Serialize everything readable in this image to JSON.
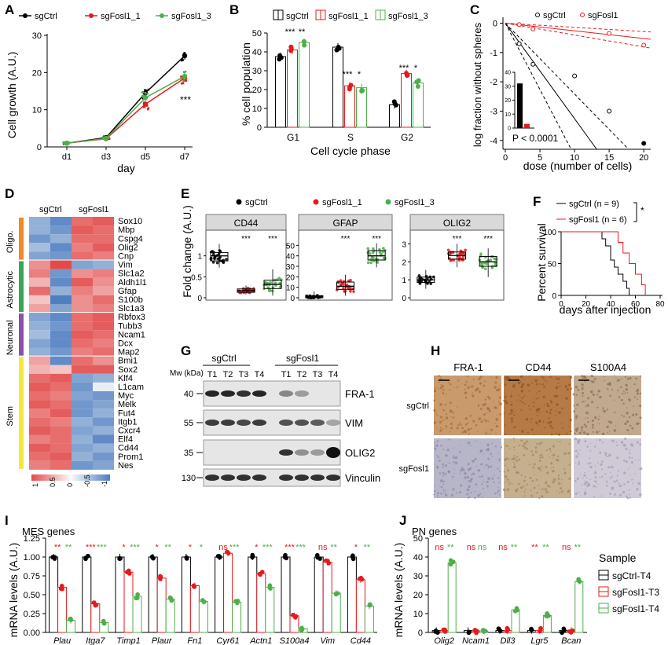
{
  "panel_letters": {
    "A": "A",
    "B": "B",
    "C": "C",
    "D": "D",
    "E": "E",
    "F": "F",
    "G": "G",
    "H": "H",
    "I": "I",
    "J": "J"
  },
  "colors": {
    "ctrl": "#000000",
    "f1": "#e41a1c",
    "f3": "#4daf4a",
    "oligo": "#f08a24",
    "astro": "#3aa655",
    "neuro": "#8e4fa8",
    "stem": "#f4e83a",
    "heat_high": "#e34a4a",
    "heat_low": "#4f7fc0"
  },
  "legend_labels": {
    "ctrl": "sgCtrl",
    "f1": "sgFosl1_1",
    "f3": "sgFosl1_3",
    "fosl1": "sgFosl1"
  },
  "chart_data": [
    {
      "panel": "A",
      "type": "line",
      "xlabel": "day",
      "ylabel": "Cell growth (A.U.)",
      "categories": [
        "d1",
        "d3",
        "d5",
        "d7"
      ],
      "ylim": [
        0,
        30
      ],
      "yticks": [
        0,
        10,
        20,
        30
      ],
      "series": [
        {
          "name": "sgCtrl",
          "values": [
            1,
            2.5,
            14.5,
            24.5
          ]
        },
        {
          "name": "sgFosl1_1",
          "values": [
            1,
            2.2,
            11.5,
            18.5
          ]
        },
        {
          "name": "sgFosl1_3",
          "values": [
            1,
            2.3,
            13.2,
            19
          ]
        }
      ],
      "annotation": "***"
    },
    {
      "panel": "B",
      "type": "bar",
      "xlabel": "Cell cycle phase",
      "ylabel": "% cell population",
      "categories": [
        "G1",
        "S",
        "G2"
      ],
      "ylim": [
        0,
        50
      ],
      "yticks": [
        0,
        10,
        20,
        30,
        40,
        50
      ],
      "series": [
        {
          "name": "sgCtrl",
          "values": [
            37.5,
            42.5,
            12
          ]
        },
        {
          "name": "sgFosl1_1",
          "values": [
            41,
            22,
            28.5
          ]
        },
        {
          "name": "sgFosl1_3",
          "values": [
            45,
            21,
            23.5
          ]
        }
      ],
      "annotations": [
        [
          "***",
          "**"
        ],
        [
          "***",
          "*"
        ],
        [
          "***",
          "*"
        ]
      ]
    },
    {
      "panel": "C",
      "type": "scatter",
      "xlabel": "dose (number of cells)",
      "ylabel": "log fraction without spheres",
      "xlim": [
        0,
        21
      ],
      "xticks": [
        0,
        5,
        10,
        15,
        20
      ],
      "ylim": [
        -4.3,
        0.2
      ],
      "yticks": [
        0,
        -1,
        -2,
        -3,
        -4
      ],
      "series": [
        {
          "name": "sgCtrl",
          "x": [
            2,
            4,
            10,
            15,
            20
          ],
          "y": [
            -0.7,
            -1.4,
            -1.8,
            -3.0,
            -4.1
          ]
        },
        {
          "name": "sgFosl1",
          "x": [
            2,
            4,
            15,
            20
          ],
          "y": [
            -0.05,
            -0.2,
            -0.35,
            -0.75
          ]
        }
      ],
      "inset": {
        "type": "bar",
        "ylim": [
          0,
          40
        ],
        "yticks": [
          0,
          10,
          20,
          30,
          40
        ],
        "values": [
          32,
          3
        ]
      },
      "annotation": "P < 0.0001"
    },
    {
      "panel": "D",
      "type": "heatmap",
      "columns": [
        "sgCtrl",
        "sgFosl1"
      ],
      "groups": [
        {
          "name": "Oligo.",
          "genes": [
            "Sox10",
            "Mbp",
            "Cspg4",
            "Olig2",
            "Cnp"
          ]
        },
        {
          "name": "Astrocytic",
          "genes": [
            "Vim",
            "Slc1a2",
            "Aldh1l1",
            "Gfap",
            "S100b",
            "Slc1a3"
          ]
        },
        {
          "name": "Neuronal",
          "genes": [
            "Rbfox3",
            "Tubb3",
            "Ncam1",
            "Dcx",
            "Map2"
          ]
        },
        {
          "name": "Stem",
          "genes": [
            "Bmi1",
            "Sox2",
            "Klf4",
            "L1cam",
            "Myc",
            "Melk",
            "Fut4",
            "Itgb1",
            "Cxcr4",
            "Elf4",
            "Cd44",
            "Prom1",
            "Nes"
          ]
        }
      ],
      "values": [
        [
          -0.6,
          -0.9,
          0.8,
          0.9
        ],
        [
          -0.6,
          -0.8,
          0.9,
          0.8
        ],
        [
          -0.8,
          -0.6,
          0.8,
          0.8
        ],
        [
          -0.5,
          -0.9,
          0.7,
          0.9
        ],
        [
          -0.7,
          -0.8,
          0.8,
          0.7
        ],
        [
          0.6,
          1.0,
          -0.7,
          -0.6
        ],
        [
          0.7,
          -0.8,
          0.6,
          0.7
        ],
        [
          0.4,
          -0.9,
          0.9,
          0.6
        ],
        [
          0.8,
          -0.6,
          0.7,
          0.5
        ],
        [
          0.3,
          -1.0,
          0.6,
          0.8
        ],
        [
          0.5,
          -0.7,
          0.6,
          0.7
        ],
        [
          -0.7,
          -0.9,
          0.8,
          0.9
        ],
        [
          -0.6,
          -0.8,
          0.8,
          0.9
        ],
        [
          -0.5,
          -0.9,
          0.9,
          0.8
        ],
        [
          -0.7,
          -0.9,
          0.8,
          0.7
        ],
        [
          -0.6,
          -0.8,
          0.7,
          0.8
        ],
        [
          0.5,
          -0.9,
          0.8,
          0.6
        ],
        [
          0.4,
          0.3,
          0.9,
          0.9
        ],
        [
          0.8,
          0.9,
          -0.7,
          -0.6
        ],
        [
          0.9,
          0.8,
          -0.8,
          -0.1
        ],
        [
          0.8,
          0.7,
          -0.7,
          -0.8
        ],
        [
          0.9,
          0.8,
          -0.8,
          -0.7
        ],
        [
          0.7,
          0.9,
          -0.8,
          -0.6
        ],
        [
          0.8,
          0.7,
          -0.6,
          -0.8
        ],
        [
          0.9,
          0.8,
          -0.7,
          -0.6
        ],
        [
          0.7,
          0.8,
          -0.6,
          -0.9
        ],
        [
          0.9,
          0.8,
          -0.7,
          -0.6
        ],
        [
          0.8,
          0.9,
          -0.6,
          -0.8
        ],
        [
          0.7,
          0.8,
          -0.8,
          -0.7
        ]
      ],
      "scale_ticks": [
        "1",
        "0.5",
        "0",
        "-0.5",
        "-1"
      ]
    },
    {
      "panel": "E",
      "type": "box",
      "ylabel": "Fold change (A.U.)",
      "facets": [
        {
          "name": "CD44",
          "ylim": [
            0,
            1.5
          ],
          "yticks": [
            0,
            0.5,
            1
          ],
          "medians": [
            1.0,
            0.17,
            0.32
          ],
          "q1": [
            0.88,
            0.13,
            0.22
          ],
          "q3": [
            1.08,
            0.21,
            0.42
          ],
          "lo": [
            0.72,
            0.08,
            0.05
          ],
          "hi": [
            1.28,
            0.29,
            0.68
          ],
          "annotations": [
            "",
            "***",
            "***"
          ]
        },
        {
          "name": "GFAP",
          "ylim": [
            0,
            60
          ],
          "yticks": [
            0,
            10,
            20,
            30,
            40,
            50
          ],
          "medians": [
            1,
            11,
            40
          ],
          "q1": [
            0,
            8,
            36
          ],
          "q3": [
            2,
            15,
            45
          ],
          "lo": [
            0,
            2,
            29
          ],
          "hi": [
            6,
            22,
            52
          ],
          "annotations": [
            "",
            "***",
            "***"
          ]
        },
        {
          "name": "OLIG2",
          "ylim": [
            0,
            3.5
          ],
          "yticks": [
            0,
            1,
            2,
            3
          ],
          "medians": [
            1.0,
            2.35,
            2.0
          ],
          "q1": [
            0.85,
            2.15,
            1.75
          ],
          "q3": [
            1.15,
            2.55,
            2.3
          ],
          "lo": [
            0.5,
            1.7,
            1.15
          ],
          "hi": [
            1.55,
            3.0,
            2.75
          ],
          "annotations": [
            "",
            "***",
            "***"
          ]
        }
      ]
    },
    {
      "panel": "F",
      "type": "line",
      "xlabel": "days after injection",
      "ylabel": "Percent survival",
      "xlim": [
        0,
        80
      ],
      "xticks": [
        0,
        20,
        40,
        60,
        80
      ],
      "ylim": [
        0,
        100
      ],
      "yticks": [
        0,
        50,
        100
      ],
      "series": [
        {
          "name": "sgCtrl (n = 9)",
          "x": [
            0,
            30,
            33,
            36,
            40,
            43,
            46,
            50,
            53,
            55
          ],
          "y": [
            100,
            100,
            88.9,
            77.8,
            55.6,
            44.4,
            33.3,
            22.2,
            11.1,
            0
          ]
        },
        {
          "name": "sgFosl1 (n = 6)",
          "x": [
            0,
            40,
            46,
            50,
            55,
            60,
            65,
            68
          ],
          "y": [
            100,
            100,
            83.3,
            66.7,
            50,
            33.3,
            16.7,
            0
          ]
        }
      ],
      "annotation": "*"
    },
    {
      "panel": "I",
      "type": "bar",
      "title": "MES genes",
      "ylabel": "mRNA levels (A.U.)",
      "categories": [
        "Plau",
        "Itga7",
        "Timp1",
        "Plaur",
        "Fn1",
        "Cyr61",
        "Actn1",
        "S100a4",
        "Vim",
        "Cd44"
      ],
      "ylim": [
        0,
        1.25
      ],
      "yticks": [
        0,
        0.25,
        0.5,
        0.75,
        1,
        1.25
      ],
      "series": [
        {
          "name": "sgCtrl-T4",
          "values": [
            1,
            1,
            1,
            1,
            1,
            1,
            1,
            1,
            1,
            1
          ]
        },
        {
          "name": "sgFosl1-T3",
          "values": [
            0.6,
            0.38,
            0.8,
            0.72,
            0.62,
            1.05,
            0.78,
            0.22,
            0.93,
            0.7
          ]
        },
        {
          "name": "sgFosl1-T4",
          "values": [
            0.16,
            0.13,
            0.48,
            0.44,
            0.41,
            0.4,
            0.6,
            0.05,
            0.52,
            0.35
          ]
        }
      ],
      "annotations": [
        [
          "**",
          "**"
        ],
        [
          "***",
          "***"
        ],
        [
          "*",
          "***"
        ],
        [
          "*",
          "**"
        ],
        [
          "*",
          "*"
        ],
        [
          "ns",
          "***"
        ],
        [
          "*",
          "***"
        ],
        [
          "***",
          "***"
        ],
        [
          "ns",
          "**"
        ],
        [
          "*",
          "**"
        ]
      ]
    },
    {
      "panel": "J",
      "type": "bar",
      "title": "PN genes",
      "ylabel": "mRNA levels (A.U.)",
      "categories": [
        "Olig2",
        "Ncam1",
        "Dll3",
        "Lgr5",
        "Bcan"
      ],
      "ylim": [
        0,
        50
      ],
      "yticks": [
        0,
        10,
        20,
        30,
        40,
        50
      ],
      "series": [
        {
          "name": "sgCtrl-T4",
          "values": [
            1,
            1,
            1,
            1,
            1
          ]
        },
        {
          "name": "sgFosl1-T3",
          "values": [
            1,
            0.8,
            1,
            1,
            1.2
          ]
        },
        {
          "name": "sgFosl1-T4",
          "values": [
            37,
            0.8,
            12,
            9,
            27
          ]
        }
      ],
      "annotations": [
        [
          "ns",
          "**"
        ],
        [
          "ns",
          "ns"
        ],
        [
          "ns",
          "**"
        ],
        [
          "**",
          "**"
        ],
        [
          "ns",
          "**"
        ]
      ],
      "legend_title": "Sample"
    }
  ],
  "western": {
    "header_ctrl": "sgCtrl",
    "header_fosl1": "sgFosl1",
    "mw_label": "Mw (kDa)",
    "lanes": [
      "T1",
      "T2",
      "T3",
      "T4",
      "T1",
      "T2",
      "T3",
      "T4"
    ],
    "blots": [
      {
        "label": "FRA-1",
        "mw": "40",
        "intensity": [
          0.9,
          0.9,
          0.85,
          0.9,
          0.45,
          0.35,
          0,
          0
        ]
      },
      {
        "label": "VIM",
        "mw": "55",
        "intensity": [
          0.8,
          0.8,
          0.75,
          0.8,
          0.7,
          0.7,
          0.65,
          0.3
        ]
      },
      {
        "label": "OLIG2",
        "mw": "35",
        "intensity": [
          0,
          0,
          0,
          0,
          0.85,
          0.4,
          0.35,
          1.0
        ]
      },
      {
        "label": "Vinculin",
        "mw": "130",
        "intensity": [
          0.85,
          0.85,
          0.85,
          0.85,
          0.85,
          0.85,
          0.85,
          0.85
        ]
      }
    ]
  },
  "ihc": {
    "columns": [
      "FRA-1",
      "CD44",
      "S100A4"
    ],
    "rows": [
      "sgCtrl",
      "sgFosl1"
    ]
  }
}
